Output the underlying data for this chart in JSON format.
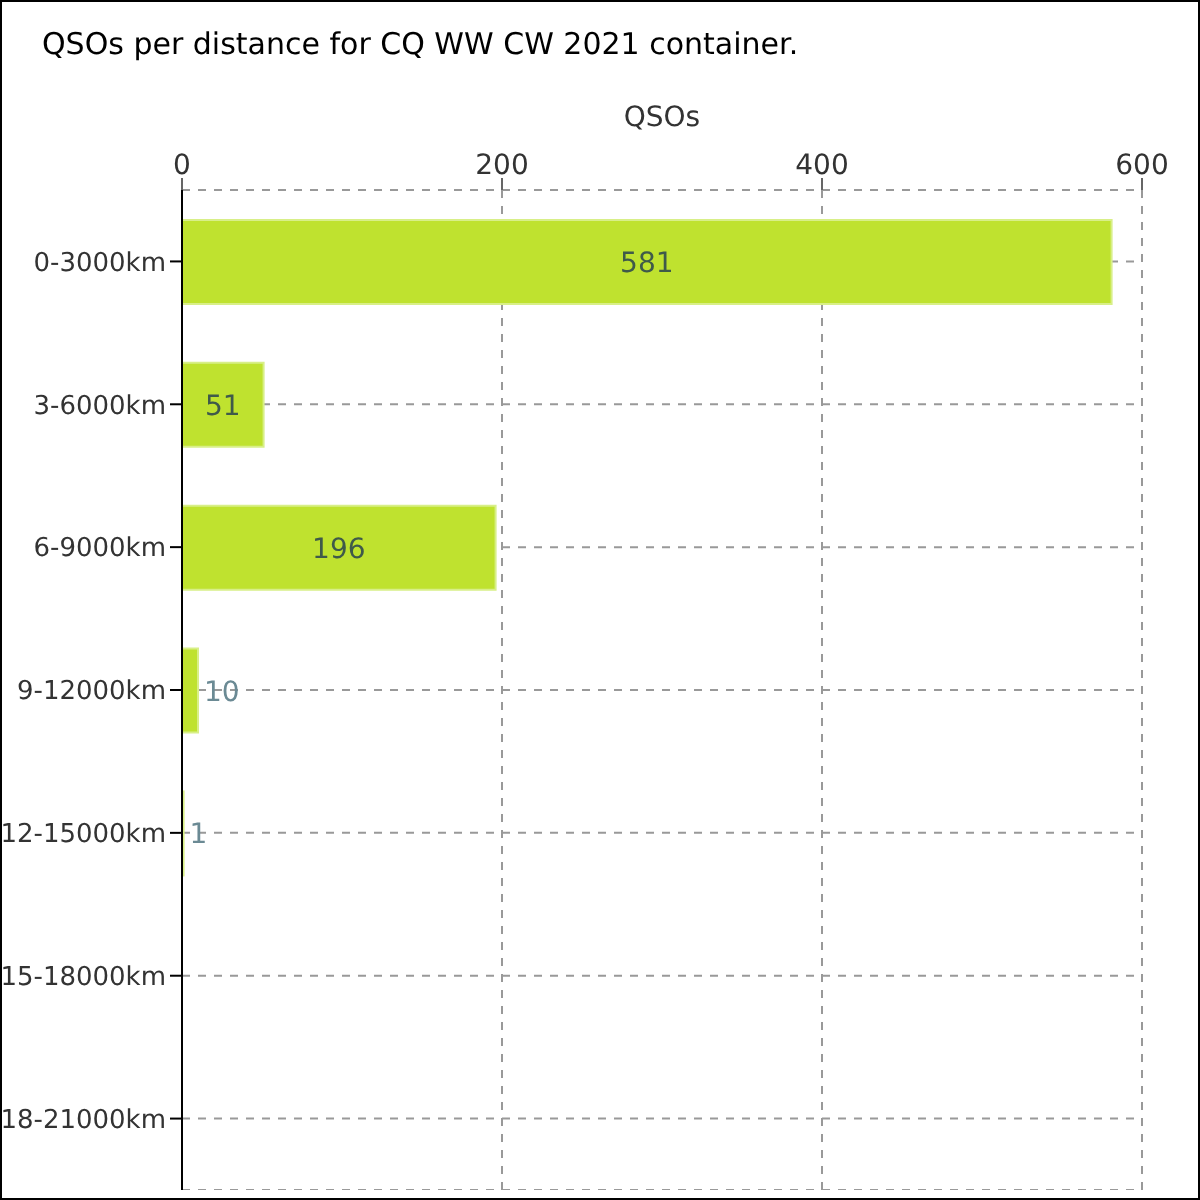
{
  "chart_data": {
    "type": "bar",
    "orientation": "horizontal",
    "title": "QSOs per distance for CQ WW CW 2021 container.",
    "xlabel": "QSOs",
    "categories": [
      "0-3000km",
      "3-6000km",
      "6-9000km",
      "9-12000km",
      "12-15000km",
      "15-18000km",
      "18-21000km"
    ],
    "values": [
      581,
      51,
      196,
      10,
      1,
      0,
      0
    ],
    "value_labels": [
      "581",
      "51",
      "196",
      "10",
      "1",
      null,
      null
    ],
    "color": "#bfe22f",
    "xlim": [
      0,
      600
    ],
    "xticks": [
      0,
      200,
      400,
      600
    ],
    "grid": true
  }
}
